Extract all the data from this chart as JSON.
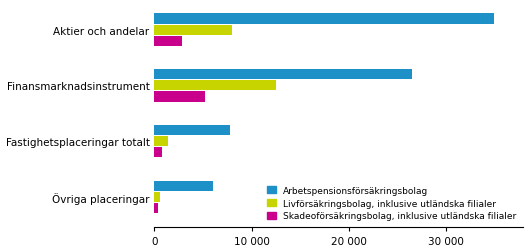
{
  "categories": [
    "Aktier och andelar",
    "Finansmarknadsinstrument",
    "Fastighetsplaceringar totalt",
    "Övriga placeringar"
  ],
  "series": {
    "Arbetspensionsförsäkringsbolag": [
      35000,
      26500,
      7800,
      6000
    ],
    "Livförsäkringsbolag, inklusive utländska filialer": [
      8000,
      12500,
      1400,
      600
    ],
    "Skadeoförsäkringsbolag, inklusive utländska filialer": [
      2800,
      5200,
      800,
      400
    ]
  },
  "colors": {
    "Arbetspensionsförsäkringsbolag": "#1e90c8",
    "Livförsäkringsbolag, inklusive utländska filialer": "#c8d400",
    "Skadeoförsäkringsbolag, inklusive utländska filialer": "#c8008c"
  },
  "legend_labels": [
    "Arbetspensionsförsäkringsbolag",
    "Livförsäkringsbolag, inklusive utländska filialer",
    "Skadeoförsäkringsbolag, inklusive utländska filialer"
  ],
  "xlim": [
    0,
    38000
  ],
  "xticks": [
    0,
    10000,
    20000,
    30000
  ],
  "xticklabels": [
    "0",
    "10 000",
    "20 000",
    "30 000"
  ],
  "bar_height": 0.2,
  "figsize": [
    5.29,
    2.53
  ],
  "dpi": 100
}
